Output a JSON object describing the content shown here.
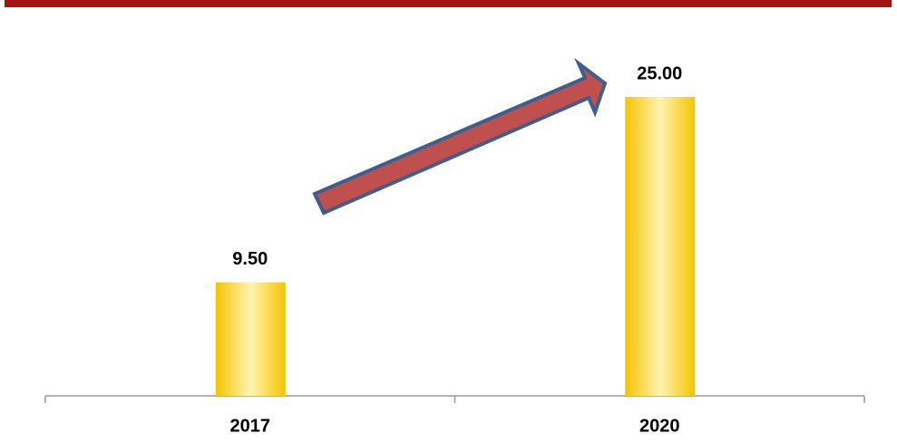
{
  "chart_data": {
    "type": "bar",
    "categories": [
      "2017",
      "2020"
    ],
    "values": [
      9.5,
      25
    ],
    "value_labels": [
      "9.50",
      "25.00"
    ]
  }
}
